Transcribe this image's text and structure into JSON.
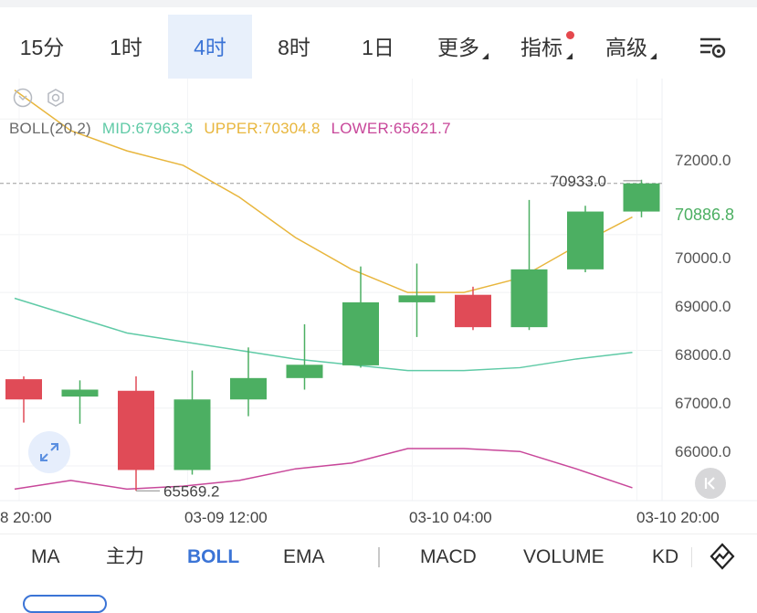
{
  "timeframes": [
    {
      "label": "15分",
      "active": false
    },
    {
      "label": "1时",
      "active": false
    },
    {
      "label": "4时",
      "active": true
    },
    {
      "label": "8时",
      "active": false
    },
    {
      "label": "1日",
      "active": false
    },
    {
      "label": "更多",
      "active": false
    },
    {
      "label": "指标",
      "active": false
    },
    {
      "label": "高级",
      "active": false
    }
  ],
  "toolbar_icons": [
    "chevron-down-icon",
    "gear-icon",
    "settings-list-icon"
  ],
  "legend": {
    "name": "BOLL(20,2)",
    "mid": "MID:67963.3",
    "upper": "UPPER:70304.8",
    "lower": "LOWER:65621.7"
  },
  "colors": {
    "up": "#4caf62",
    "down": "#e04b57",
    "mid": "#5fcaa6",
    "upper": "#e8b63d",
    "lower": "#c8479a",
    "accent": "#3b74d6"
  },
  "price_axis": [
    "72000.0",
    "70000.0",
    "69000.0",
    "68000.0",
    "67000.0",
    "66000.0"
  ],
  "current_price": "70886.8",
  "annotations": {
    "high": "70933.0",
    "low": "65569.2"
  },
  "time_axis": [
    "8 20:00",
    "03-09 12:00",
    "03-10 04:00",
    "03-10 20:00"
  ],
  "chart_data": {
    "type": "candlestick",
    "title": "",
    "y_range": [
      65400,
      72700
    ],
    "candles": [
      {
        "open": 67500,
        "high": 67550,
        "low": 66750,
        "close": 67150
      },
      {
        "open": 67200,
        "high": 67480,
        "low": 66730,
        "close": 67320
      },
      {
        "open": 67300,
        "high": 67550,
        "low": 65570,
        "close": 65930
      },
      {
        "open": 65930,
        "high": 67650,
        "low": 65850,
        "close": 67150
      },
      {
        "open": 67150,
        "high": 68050,
        "low": 66860,
        "close": 67520
      },
      {
        "open": 67520,
        "high": 68450,
        "low": 67320,
        "close": 67750
      },
      {
        "open": 67740,
        "high": 69450,
        "low": 67700,
        "close": 68830
      },
      {
        "open": 68830,
        "high": 69500,
        "low": 68230,
        "close": 68950
      },
      {
        "open": 68960,
        "high": 69100,
        "low": 68350,
        "close": 68400
      },
      {
        "open": 68400,
        "high": 70600,
        "low": 68350,
        "close": 69400
      },
      {
        "open": 69400,
        "high": 70500,
        "low": 69350,
        "close": 70400
      },
      {
        "open": 70400,
        "high": 70950,
        "low": 70300,
        "close": 70887
      }
    ],
    "boll_upper": [
      72500,
      71800,
      71450,
      71200,
      70650,
      69950,
      69400,
      69000,
      69000,
      69250,
      69800,
      70305
    ],
    "boll_mid": [
      68900,
      68600,
      68300,
      68150,
      68000,
      67850,
      67750,
      67650,
      67650,
      67700,
      67850,
      67963
    ],
    "boll_lower": [
      65600,
      65750,
      65600,
      65650,
      65750,
      65950,
      66050,
      66300,
      66300,
      66250,
      65950,
      65622
    ]
  },
  "indicators": [
    {
      "label": "MA",
      "active": false
    },
    {
      "label": "主力",
      "active": false
    },
    {
      "label": "BOLL",
      "active": true
    },
    {
      "label": "EMA",
      "active": false
    },
    {
      "label": "MACD",
      "active": false
    },
    {
      "label": "VOLUME",
      "active": false
    },
    {
      "label": "KD",
      "active": false
    }
  ]
}
